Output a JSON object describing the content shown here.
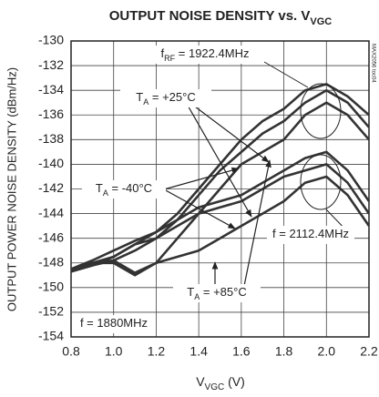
{
  "chart_data": {
    "type": "line",
    "title": "OUTPUT NOISE DENSITY vs. V",
    "title_sub": "VGC",
    "x_label": "V",
    "x_label_sub": "VGC",
    "x_label_end": " (V)",
    "y_label": "OUTPUT POWER NOISE DENSITY (dBm/Hz)",
    "figure_id": "MAX2056 toc04",
    "annotations": [
      {
        "parts": [
          {
            "text": "f"
          },
          {
            "text": "RF",
            "sub": true
          },
          {
            "text": " = 1922.4MHz"
          }
        ]
      },
      {
        "parts": [
          {
            "text": "T"
          },
          {
            "text": "A",
            "sub": true
          },
          {
            "text": " = +25°C"
          }
        ]
      },
      {
        "parts": [
          {
            "text": "T"
          },
          {
            "text": "A",
            "sub": true
          },
          {
            "text": " = -40°C"
          }
        ]
      },
      {
        "parts": [
          {
            "text": "f = 2112.4MHz"
          }
        ]
      },
      {
        "parts": [
          {
            "text": "T"
          },
          {
            "text": "A",
            "sub": true
          },
          {
            "text": " = +85°C"
          }
        ]
      },
      {
        "parts": [
          {
            "text": "f = 1880MHz"
          }
        ]
      }
    ],
    "x": [
      0.8,
      0.9,
      1.0,
      1.1,
      1.2,
      1.3,
      1.4,
      1.5,
      1.6,
      1.7,
      1.8,
      1.9,
      2.0,
      2.1,
      2.2
    ],
    "series": [
      {
        "color": "#333333",
        "values": [
          -148.5,
          -148,
          -147.5,
          -146.5,
          -145.5,
          -144,
          -142,
          -140,
          -138,
          -136.5,
          -135.5,
          -134,
          -133.5,
          -134.5,
          -136
        ]
      },
      {
        "color": "#333333",
        "values": [
          -148.7,
          -148.2,
          -147.8,
          -147,
          -146,
          -144.5,
          -142.5,
          -140.5,
          -139,
          -137.5,
          -136.5,
          -135,
          -134,
          -135,
          -137
        ]
      },
      {
        "color": "#333333",
        "values": [
          -148.5,
          -148,
          -148,
          -149,
          -148,
          -146,
          -144,
          -142,
          -140,
          -139,
          -138,
          -136,
          -135,
          -136,
          -138
        ]
      },
      {
        "color": "#333333",
        "values": [
          -148.5,
          -147.8,
          -147,
          -146.2,
          -145.5,
          -144.5,
          -143.5,
          -143,
          -142.5,
          -141.5,
          -140.5,
          -139.5,
          -139,
          -140.5,
          -143
        ]
      },
      {
        "color": "#333333",
        "values": [
          -148.7,
          -148.2,
          -147.5,
          -146.5,
          -146,
          -145,
          -144,
          -143.5,
          -143,
          -142,
          -141,
          -140.5,
          -140,
          -141.5,
          -144
        ]
      },
      {
        "color": "#333333",
        "values": [
          -148.5,
          -148,
          -147.8,
          -148.8,
          -148,
          -147.5,
          -147,
          -146,
          -145,
          -144,
          -143,
          -141.5,
          -141,
          -142.5,
          -145
        ]
      }
    ],
    "xlim": [
      0.8,
      2.2
    ],
    "xticks": [
      0.8,
      {
        "value": 1,
        "label": "1.0"
      },
      1.2,
      1.4,
      1.6,
      1.8,
      {
        "value": 2,
        "label": "2.0"
      },
      2.2
    ],
    "ylim": [
      -154,
      -130
    ],
    "yticks": [
      -154,
      -152,
      -150,
      -148,
      -146,
      -144,
      -142,
      -140,
      -138,
      -136,
      -134,
      -132,
      -130
    ],
    "grid": true
  }
}
